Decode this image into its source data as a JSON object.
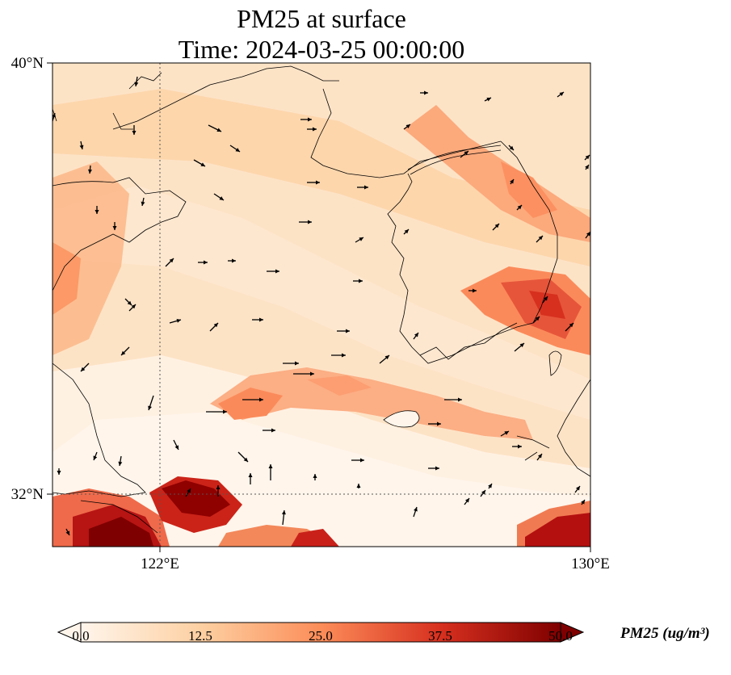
{
  "title": {
    "line1": "PM25 at surface",
    "line2": "Time: 2024-03-25 00:00:00"
  },
  "map": {
    "lon_range": [
      120,
      130
    ],
    "lat_range": [
      31,
      40
    ],
    "lat_ticks": [
      {
        "lat": 40,
        "label": "40°N"
      },
      {
        "lat": 32,
        "label": "32°N"
      }
    ],
    "lon_ticks": [
      {
        "lon": 122,
        "label": "122°E"
      },
      {
        "lon": 130,
        "label": "130°E"
      }
    ],
    "gridlines": {
      "lon": [
        122
      ],
      "lat": [
        32
      ],
      "style": "dotted"
    },
    "field": "PM25",
    "vectors": "wind arrows"
  },
  "colorbar": {
    "title": "PM25 (ug/m³)",
    "ticks": [
      "0.0",
      "12.5",
      "25.0",
      "37.5",
      "50.0"
    ],
    "range": [
      0,
      50
    ],
    "colormap": [
      "#fff5eb",
      "#fdd0a2",
      "#fd8d3c",
      "#d94801",
      "#7f0000"
    ]
  }
}
